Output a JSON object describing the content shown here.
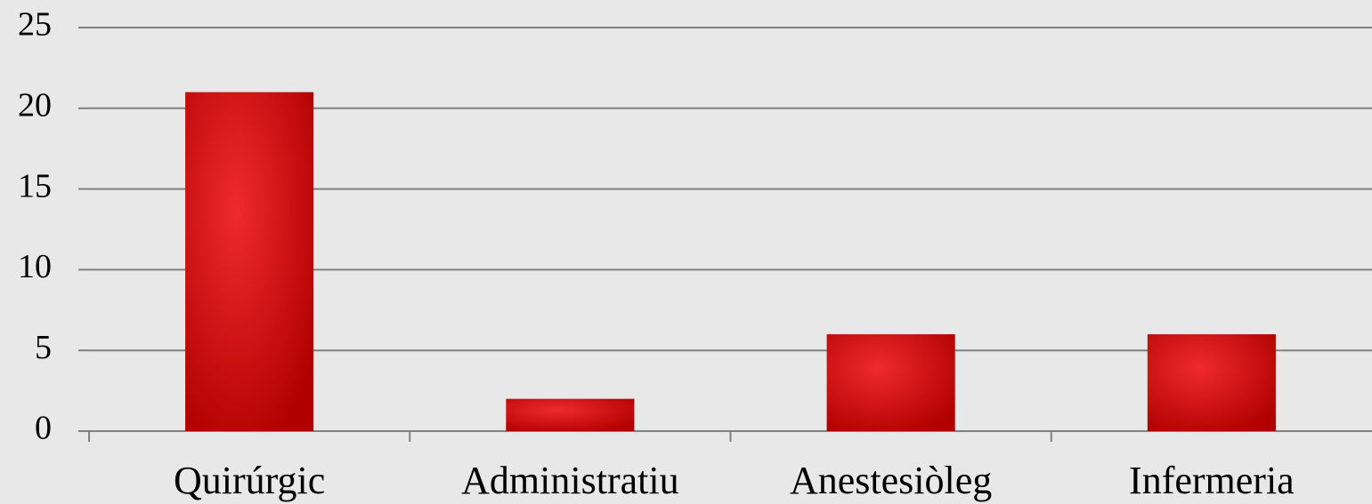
{
  "chart_data": {
    "type": "bar",
    "categories": [
      "Quirúrgic",
      "Administratiu",
      "Anestesiòleg",
      "Infermeria"
    ],
    "values": [
      21,
      2,
      6,
      6
    ],
    "color": "#b00000",
    "ylim": [
      0,
      25
    ],
    "yticks": [
      0,
      5,
      10,
      15,
      20,
      25
    ],
    "grid": true
  }
}
